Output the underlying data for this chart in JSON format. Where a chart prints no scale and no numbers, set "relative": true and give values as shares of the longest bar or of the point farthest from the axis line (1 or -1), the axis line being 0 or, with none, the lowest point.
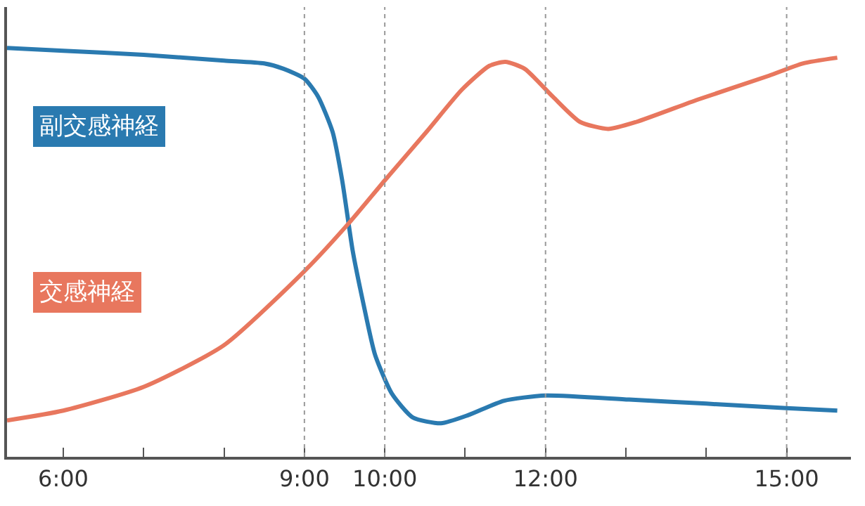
{
  "chart_data": {
    "type": "line",
    "relative": true,
    "legend": false,
    "marker": "none",
    "line_style": "solid",
    "xlim": [
      5.3,
      15.8
    ],
    "xticks": [
      {
        "value": 6,
        "label": "6:00"
      },
      {
        "value": 7,
        "label": null
      },
      {
        "value": 8,
        "label": null
      },
      {
        "value": 9,
        "label": "9:00"
      },
      {
        "value": 10,
        "label": "10:00"
      },
      {
        "value": 11,
        "label": null
      },
      {
        "value": 12,
        "label": "12:00"
      },
      {
        "value": 13,
        "label": null
      },
      {
        "value": 14,
        "label": null
      },
      {
        "value": 15,
        "label": "15:00"
      }
    ],
    "ref_lines": [
      {
        "axis": "x",
        "value": 9,
        "color": "#999999",
        "line_style": "dotted"
      },
      {
        "axis": "x",
        "value": 10,
        "color": "#999999",
        "line_style": "dotted"
      },
      {
        "axis": "x",
        "value": 12,
        "color": "#999999",
        "line_style": "dotted"
      },
      {
        "axis": "x",
        "value": 15,
        "color": "#999999",
        "line_style": "dotted"
      }
    ],
    "series": [
      {
        "name": "副交感神経",
        "color": "#2a7ab0",
        "x": [
          5.3,
          6,
          7,
          8,
          8.5,
          8.74,
          9,
          9.17,
          9.35,
          9.47,
          9.6,
          9.74,
          9.88,
          10.09,
          10.35,
          10.7,
          11.04,
          11.48,
          12,
          13.04,
          14,
          15,
          15.63
        ],
        "values": [
          1.0,
          0.993,
          0.983,
          0.969,
          0.962,
          0.949,
          0.925,
          0.881,
          0.795,
          0.676,
          0.505,
          0.369,
          0.249,
          0.154,
          0.096,
          0.082,
          0.102,
          0.137,
          0.15,
          0.14,
          0.13,
          0.119,
          0.113
        ]
      },
      {
        "name": "交感神経",
        "color": "#e8775e",
        "x": [
          5.3,
          6,
          7,
          8,
          9,
          9.56,
          10,
          10.52,
          10.96,
          11.3,
          11.5,
          11.74,
          12.09,
          12.43,
          12.78,
          13.13,
          13.9,
          14.78,
          15.2,
          15.63
        ],
        "values": [
          0.089,
          0.113,
          0.171,
          0.273,
          0.454,
          0.573,
          0.676,
          0.795,
          0.898,
          0.956,
          0.966,
          0.949,
          0.881,
          0.819,
          0.802,
          0.819,
          0.874,
          0.932,
          0.962,
          0.976
        ]
      }
    ]
  }
}
